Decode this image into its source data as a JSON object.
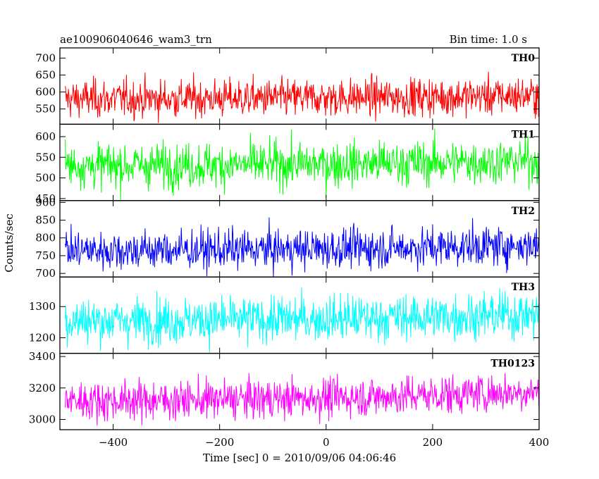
{
  "header": {
    "title": "ae100906040646_wam3_trn",
    "bin_time": "Bin time: 1.0 s"
  },
  "axes": {
    "ylabel": "Counts/sec",
    "xlabel": "Time [sec] 0 = 2010/09/06 04:06:46"
  },
  "chart_data": {
    "type": "line",
    "x_range": [
      -500,
      400
    ],
    "x_ticks": [
      -400,
      -200,
      0,
      200,
      400
    ],
    "x_tick_labels": [
      "−400",
      "−200",
      "0",
      "200",
      "400"
    ],
    "series": [
      {
        "name": "TH0",
        "color": "#ff0000",
        "ylim": [
          505,
          730
        ],
        "y_ticks": [
          550,
          600,
          650,
          700
        ],
        "mean": 580,
        "sigma": 28,
        "trend": 10
      },
      {
        "name": "TH1",
        "color": "#00ff00",
        "ylim": [
          445,
          630
        ],
        "y_ticks": [
          450,
          500,
          550,
          600
        ],
        "mean": 530,
        "sigma": 27,
        "trend": 12
      },
      {
        "name": "TH2",
        "color": "#0000ff",
        "ylim": [
          690,
          905
        ],
        "y_ticks": [
          700,
          750,
          800,
          850,
          900
        ],
        "mean": 765,
        "sigma": 28,
        "trend": 15
      },
      {
        "name": "TH3",
        "color": "#00ffff",
        "ylim": [
          1150,
          1395
        ],
        "y_ticks": [
          1200,
          1300
        ],
        "mean": 1255,
        "sigma": 37,
        "trend": 20
      },
      {
        "name": "TH0123",
        "color": "#ff00ff",
        "ylim": [
          2935,
          3420
        ],
        "y_ticks": [
          3000,
          3200,
          3400
        ],
        "mean": 3120,
        "sigma": 62,
        "trend": 60
      }
    ]
  }
}
